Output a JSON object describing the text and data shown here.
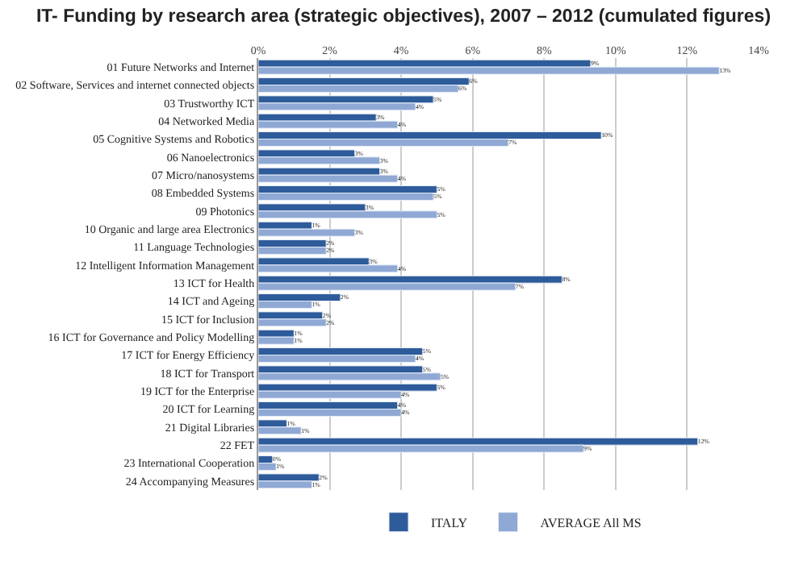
{
  "chart_data": {
    "type": "bar",
    "orientation": "horizontal",
    "title": "IT- Funding by research area (strategic objectives), 2007 – 2012 (cumulated figures)",
    "categories": [
      "01 Future Networks and Internet",
      "02 Software, Services and internet connected objects",
      "03 Trustworthy ICT",
      "04 Networked Media",
      "05 Cognitive Systems and Robotics",
      "06 Nanoelectronics",
      "07 Micro/nanosystems",
      "08 Embedded Systems",
      "09 Photonics",
      "10 Organic and large area Electronics",
      "11 Language Technologies",
      "12 Intelligent Information Management",
      "13 ICT for Health",
      "14 ICT and Ageing",
      "15 ICT for Inclusion",
      "16 ICT for Governance and Policy Modelling",
      "17 ICT for Energy Efficiency",
      "18 ICT for Transport",
      "19 ICT for the Enterprise",
      "20 ICT for Learning",
      "21 Digital Libraries",
      "22 FET",
      "23 International Cooperation",
      "24 Accompanying Measures"
    ],
    "series": [
      {
        "name": "ITALY",
        "color": "#2e5b9a",
        "values": [
          9.3,
          5.9,
          4.9,
          3.3,
          9.6,
          2.7,
          3.4,
          5.0,
          3.0,
          1.5,
          1.9,
          3.1,
          8.5,
          2.3,
          1.8,
          1.0,
          4.6,
          4.6,
          5.0,
          3.9,
          0.8,
          12.3,
          0.4,
          1.7
        ],
        "value_labels": [
          "9%",
          "6%",
          "5%",
          "3%",
          "10%",
          "3%",
          "3%",
          "5%",
          "3%",
          "1%",
          "2%",
          "3%",
          "8%",
          "2%",
          "2%",
          "1%",
          "5%",
          "5%",
          "5%",
          "4%",
          "1%",
          "12%",
          "0%",
          "2%"
        ]
      },
      {
        "name": "AVERAGE All MS",
        "color": "#8fa8d4",
        "values": [
          12.9,
          5.6,
          4.4,
          3.9,
          7.0,
          3.4,
          3.9,
          4.9,
          5.0,
          2.7,
          1.9,
          3.9,
          7.2,
          1.5,
          1.9,
          1.0,
          4.4,
          5.1,
          4.0,
          4.0,
          1.2,
          9.1,
          0.5,
          1.5
        ],
        "value_labels": [
          "13%",
          "6%",
          "4%",
          "4%",
          "7%",
          "3%",
          "4%",
          "5%",
          "5%",
          "3%",
          "2%",
          "4%",
          "7%",
          "1%",
          "2%",
          "1%",
          "4%",
          "5%",
          "4%",
          "4%",
          "1%",
          "9%",
          "1%",
          "1%"
        ]
      }
    ],
    "xlim": [
      0,
      14
    ],
    "xticks": [
      {
        "value": 0,
        "label": "0%"
      },
      {
        "value": 2,
        "label": "2%"
      },
      {
        "value": 4,
        "label": "4%"
      },
      {
        "value": 6,
        "label": "6%"
      },
      {
        "value": 8,
        "label": "8%"
      },
      {
        "value": 10,
        "label": "10%"
      },
      {
        "value": 12,
        "label": "12%"
      },
      {
        "value": 14,
        "label": "14%"
      }
    ],
    "grid": "x",
    "legend": "bottom"
  }
}
